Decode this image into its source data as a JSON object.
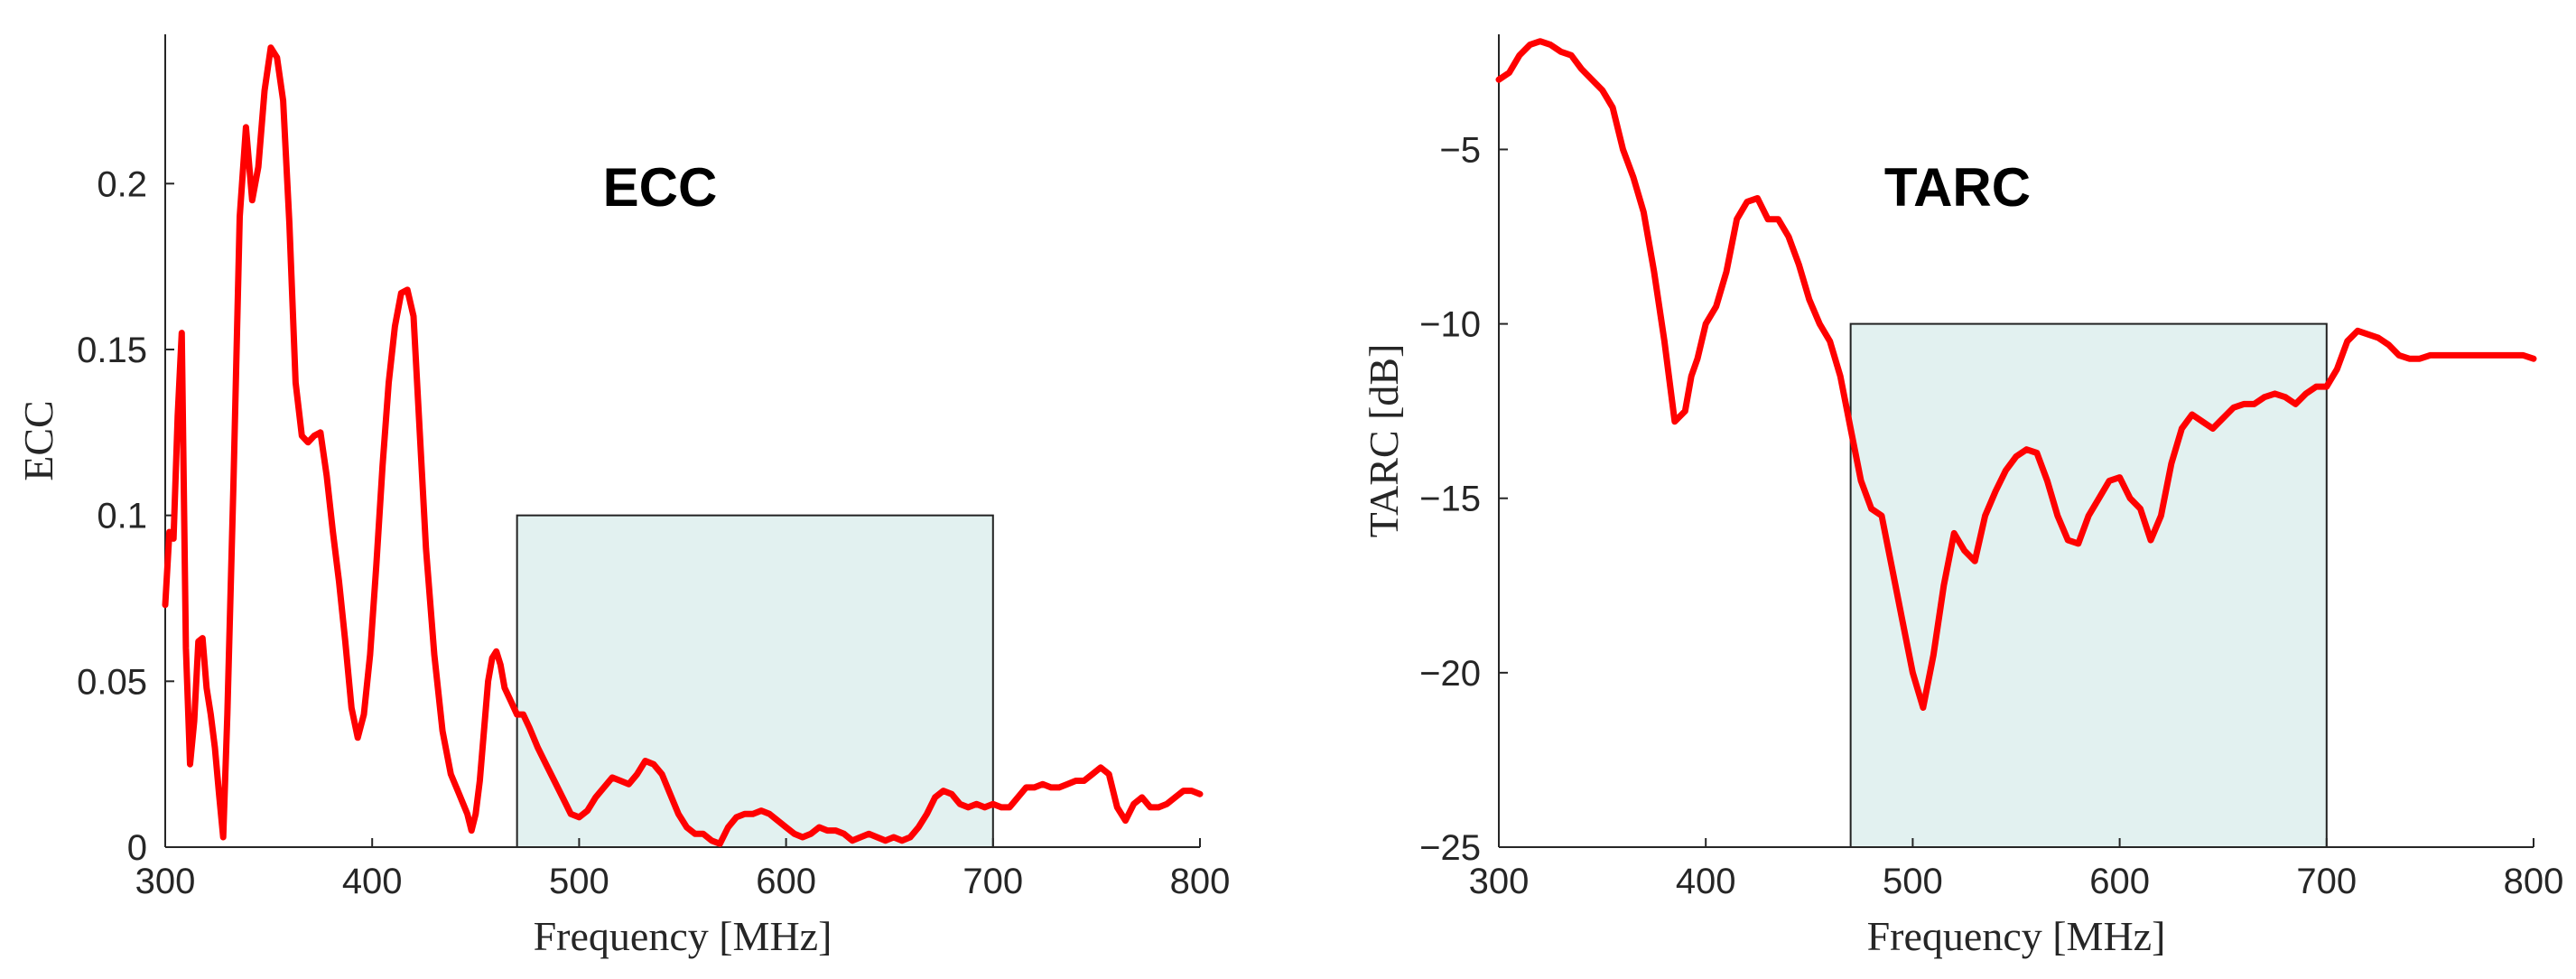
{
  "colors": {
    "line": "#ff0000",
    "band_fill": "#e2f1f0",
    "band_stroke": "#222222",
    "axis": "#262626"
  },
  "chart_data": [
    {
      "type": "line",
      "title": "ECC",
      "xlabel": "Frequency [MHz]",
      "ylabel": "ECC",
      "xlim": [
        300,
        800
      ],
      "ylim": [
        0,
        0.245
      ],
      "xticks": [
        300,
        400,
        500,
        600,
        700,
        800
      ],
      "yticks": [
        0,
        0.05,
        0.1,
        0.15,
        0.2
      ],
      "xtick_labels": [
        "300",
        "400",
        "500",
        "600",
        "700",
        "800"
      ],
      "ytick_labels": [
        "0",
        "0.05",
        "0.1",
        "0.15",
        "0.2"
      ],
      "grid": false,
      "band": {
        "x": [
          470,
          700
        ],
        "y": [
          0,
          0.1
        ]
      },
      "series": [
        {
          "color": "#ff0000",
          "x": [
            300,
            302,
            304,
            306,
            308,
            310,
            312,
            314,
            316,
            318,
            320,
            322,
            324,
            326,
            328,
            330,
            333,
            336,
            339,
            342,
            345,
            348,
            351,
            354,
            357,
            360,
            363,
            366,
            369,
            372,
            375,
            378,
            381,
            384,
            387,
            390,
            393,
            396,
            399,
            402,
            405,
            408,
            411,
            414,
            417,
            420,
            423,
            426,
            430,
            434,
            438,
            442,
            446,
            448,
            450,
            452,
            454,
            456,
            458,
            460,
            462,
            464,
            467,
            470,
            473,
            476,
            480,
            484,
            488,
            492,
            496,
            500,
            504,
            508,
            512,
            516,
            520,
            524,
            528,
            532,
            536,
            540,
            544,
            548,
            552,
            556,
            560,
            564,
            568,
            572,
            576,
            580,
            584,
            588,
            592,
            596,
            600,
            604,
            608,
            612,
            616,
            620,
            624,
            628,
            632,
            636,
            640,
            644,
            648,
            652,
            656,
            660,
            664,
            668,
            672,
            676,
            680,
            684,
            688,
            692,
            696,
            700,
            704,
            708,
            712,
            716,
            720,
            724,
            728,
            732,
            736,
            740,
            744,
            748,
            752,
            756,
            760,
            764,
            768,
            772,
            776,
            780,
            784,
            788,
            792,
            796,
            800
          ],
          "y": [
            0.073,
            0.095,
            0.093,
            0.13,
            0.155,
            0.06,
            0.025,
            0.038,
            0.062,
            0.063,
            0.048,
            0.04,
            0.03,
            0.016,
            0.003,
            0.04,
            0.11,
            0.19,
            0.217,
            0.195,
            0.205,
            0.228,
            0.241,
            0.238,
            0.225,
            0.188,
            0.14,
            0.124,
            0.122,
            0.124,
            0.125,
            0.112,
            0.095,
            0.08,
            0.062,
            0.042,
            0.033,
            0.04,
            0.058,
            0.085,
            0.115,
            0.14,
            0.157,
            0.167,
            0.168,
            0.16,
            0.125,
            0.09,
            0.058,
            0.035,
            0.022,
            0.016,
            0.01,
            0.005,
            0.01,
            0.02,
            0.035,
            0.05,
            0.057,
            0.059,
            0.055,
            0.048,
            0.044,
            0.04,
            0.04,
            0.036,
            0.03,
            0.025,
            0.02,
            0.015,
            0.01,
            0.009,
            0.011,
            0.015,
            0.018,
            0.021,
            0.02,
            0.019,
            0.022,
            0.026,
            0.025,
            0.022,
            0.016,
            0.01,
            0.006,
            0.004,
            0.004,
            0.002,
            0.001,
            0.006,
            0.009,
            0.01,
            0.01,
            0.011,
            0.01,
            0.008,
            0.006,
            0.004,
            0.003,
            0.004,
            0.006,
            0.005,
            0.005,
            0.004,
            0.002,
            0.003,
            0.004,
            0.003,
            0.002,
            0.003,
            0.002,
            0.003,
            0.006,
            0.01,
            0.015,
            0.017,
            0.016,
            0.013,
            0.012,
            0.013,
            0.012,
            0.013,
            0.012,
            0.012,
            0.015,
            0.018,
            0.018,
            0.019,
            0.018,
            0.018,
            0.019,
            0.02,
            0.02,
            0.022,
            0.024,
            0.022,
            0.012,
            0.008,
            0.013,
            0.015,
            0.012,
            0.012,
            0.013,
            0.015,
            0.017,
            0.017,
            0.016
          ]
        }
      ]
    },
    {
      "type": "line",
      "title": "TARC",
      "xlabel": "Frequency [MHz]",
      "ylabel": "TARC [dB]",
      "xlim": [
        300,
        800
      ],
      "ylim": [
        -25,
        -1.7
      ],
      "xticks": [
        300,
        400,
        500,
        600,
        700,
        800
      ],
      "yticks": [
        -25,
        -20,
        -15,
        -10,
        -5
      ],
      "xtick_labels": [
        "300",
        "400",
        "500",
        "600",
        "700",
        "800"
      ],
      "ytick_labels": [
        "−25",
        "−20",
        "−15",
        "−10",
        "−5"
      ],
      "grid": false,
      "band": {
        "x": [
          470,
          700
        ],
        "y": [
          -25,
          -10
        ]
      },
      "series": [
        {
          "color": "#ff0000",
          "x": [
            300,
            305,
            310,
            315,
            320,
            325,
            330,
            335,
            340,
            345,
            350,
            355,
            360,
            365,
            370,
            375,
            380,
            385,
            390,
            393,
            396,
            400,
            405,
            410,
            415,
            420,
            425,
            430,
            435,
            440,
            445,
            450,
            455,
            460,
            465,
            470,
            475,
            480,
            485,
            490,
            495,
            500,
            505,
            510,
            515,
            520,
            525,
            530,
            535,
            540,
            545,
            550,
            555,
            560,
            565,
            570,
            575,
            580,
            585,
            590,
            595,
            600,
            605,
            610,
            615,
            620,
            625,
            630,
            635,
            640,
            645,
            650,
            655,
            660,
            665,
            670,
            675,
            680,
            685,
            690,
            695,
            700,
            705,
            710,
            715,
            720,
            725,
            730,
            735,
            740,
            745,
            750,
            755,
            760,
            765,
            770,
            775,
            780,
            785,
            790,
            795,
            800
          ],
          "y": [
            -3,
            -2.8,
            -2.3,
            -2.0,
            -1.9,
            -2.0,
            -2.2,
            -2.3,
            -2.7,
            -3.0,
            -3.3,
            -3.8,
            -5.0,
            -5.8,
            -6.8,
            -8.5,
            -10.5,
            -12.8,
            -12.5,
            -11.5,
            -11.0,
            -10.0,
            -9.5,
            -8.5,
            -7.0,
            -6.5,
            -6.4,
            -7.0,
            -7.0,
            -7.5,
            -8.3,
            -9.3,
            -10.0,
            -10.5,
            -11.5,
            -13.0,
            -14.5,
            -15.3,
            -15.5,
            -17.0,
            -18.5,
            -20.0,
            -21.0,
            -19.5,
            -17.5,
            -16.0,
            -16.5,
            -16.8,
            -15.5,
            -14.8,
            -14.2,
            -13.8,
            -13.6,
            -13.7,
            -14.5,
            -15.5,
            -16.2,
            -16.3,
            -15.5,
            -15.0,
            -14.5,
            -14.4,
            -15.0,
            -15.3,
            -16.2,
            -15.5,
            -14.0,
            -13.0,
            -12.6,
            -12.8,
            -13.0,
            -12.7,
            -12.4,
            -12.3,
            -12.3,
            -12.1,
            -12.0,
            -12.1,
            -12.3,
            -12.0,
            -11.8,
            -11.8,
            -11.3,
            -10.5,
            -10.2,
            -10.3,
            -10.4,
            -10.6,
            -10.9,
            -11.0,
            -11.0,
            -10.9,
            -10.9,
            -10.9,
            -10.9,
            -10.9,
            -10.9,
            -10.9,
            -10.9,
            -10.9,
            -10.9,
            -11.0
          ]
        }
      ]
    }
  ]
}
